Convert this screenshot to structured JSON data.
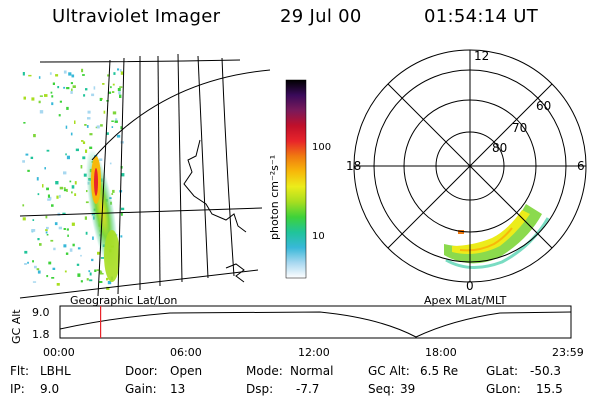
{
  "header": {
    "instrument": "Ultraviolet Imager",
    "date": "29 Jul 00",
    "time": "01:54:14 UT"
  },
  "left_panel": {
    "caption": "Geographic Lat/Lon"
  },
  "colorbar": {
    "unit_label": "photon cm⁻²s⁻¹",
    "ticks": [
      "100",
      "10"
    ],
    "colors": [
      "#000000",
      "#3a0a5a",
      "#7a1a5a",
      "#c0102a",
      "#e8242a",
      "#f07a10",
      "#f7b80a",
      "#ecec1a",
      "#a8de20",
      "#3ed23a",
      "#20c49a",
      "#38b8d8",
      "#a8d8f0",
      "#ffffff"
    ]
  },
  "polar_plot": {
    "caption": "Apex MLat/MLT",
    "mlt_labels": {
      "top": "12",
      "bottom": "0",
      "left": "18",
      "right": "6"
    },
    "lat_labels": [
      "60",
      "70",
      "80"
    ]
  },
  "timeline": {
    "y_axis_label": "GC Alt",
    "y_ticks": [
      "9.0",
      "1.8"
    ],
    "time_ticks": [
      "00:00",
      "06:00",
      "12:00",
      "18:00",
      "23:59"
    ],
    "current_time_fraction": 0.0794
  },
  "info": {
    "flt_label": "Flt:",
    "flt_value": "LBHL",
    "ip_label": "IP:",
    "ip_value": "9.0",
    "door_label": "Door:",
    "door_value": "Open",
    "gain_label": "Gain:",
    "gain_value": "13",
    "mode_label": "Mode:",
    "mode_value": "Normal",
    "dsp_label": "Dsp:",
    "dsp_value": "-7.7",
    "gcalt_label": "GC Alt:",
    "gcalt_value": "6.5 Re",
    "seq_label": "Seq:",
    "seq_value": "39",
    "glat_label": "GLat:",
    "glat_value": "-50.3",
    "glon_label": "GLon:",
    "glon_value": "15.5"
  }
}
